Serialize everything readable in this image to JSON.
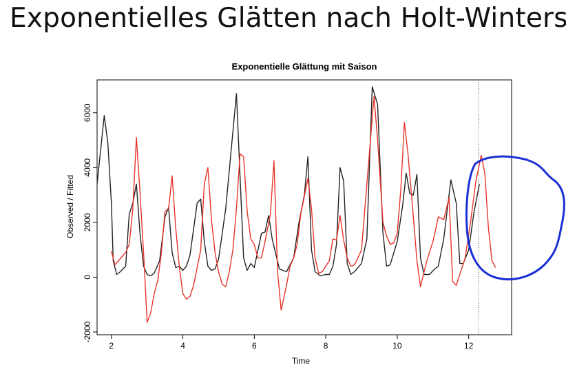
{
  "slide": {
    "title": "Exponentielles Glätten nach Holt-Winters"
  },
  "chart_data": {
    "type": "line",
    "title": "Exponentielle Glättung mit Saison",
    "xlabel": "Time",
    "ylabel": "Observed / Fitted",
    "xlim": [
      1.6,
      13.2
    ],
    "ylim": [
      -2100,
      7200
    ],
    "xticks": [
      2,
      4,
      6,
      8,
      10,
      12
    ],
    "yticks": [
      -2000,
      0,
      2000,
      4000,
      6000
    ],
    "vline_x": 12.28,
    "grid": false,
    "series": [
      {
        "color": "#222222",
        "points": [
          [
            1.6,
            3400
          ],
          [
            1.8,
            5900
          ],
          [
            1.9,
            4900
          ],
          [
            2.0,
            2700
          ],
          [
            2.05,
            600
          ],
          [
            2.15,
            100
          ],
          [
            2.25,
            200
          ],
          [
            2.4,
            400
          ],
          [
            2.5,
            2300
          ],
          [
            2.6,
            2700
          ],
          [
            2.7,
            3400
          ],
          [
            2.8,
            1600
          ],
          [
            2.9,
            400
          ],
          [
            3.0,
            100
          ],
          [
            3.1,
            50
          ],
          [
            3.2,
            150
          ],
          [
            3.35,
            600
          ],
          [
            3.5,
            2200
          ],
          [
            3.6,
            2550
          ],
          [
            3.7,
            900
          ],
          [
            3.8,
            350
          ],
          [
            3.9,
            400
          ],
          [
            4.0,
            250
          ],
          [
            4.1,
            400
          ],
          [
            4.2,
            800
          ],
          [
            4.4,
            2700
          ],
          [
            4.5,
            2850
          ],
          [
            4.6,
            1300
          ],
          [
            4.7,
            400
          ],
          [
            4.8,
            250
          ],
          [
            4.9,
            300
          ],
          [
            5.0,
            650
          ],
          [
            5.2,
            2500
          ],
          [
            5.5,
            6700
          ],
          [
            5.7,
            700
          ],
          [
            5.8,
            250
          ],
          [
            5.9,
            500
          ],
          [
            6.0,
            350
          ],
          [
            6.2,
            1600
          ],
          [
            6.3,
            1650
          ],
          [
            6.4,
            2250
          ],
          [
            6.5,
            1400
          ],
          [
            6.7,
            300
          ],
          [
            6.9,
            200
          ],
          [
            7.1,
            700
          ],
          [
            7.25,
            2000
          ],
          [
            7.4,
            3000
          ],
          [
            7.5,
            4400
          ],
          [
            7.6,
            1000
          ],
          [
            7.7,
            200
          ],
          [
            7.85,
            50
          ],
          [
            8.0,
            100
          ],
          [
            8.1,
            100
          ],
          [
            8.2,
            400
          ],
          [
            8.3,
            1200
          ],
          [
            8.4,
            4000
          ],
          [
            8.5,
            3500
          ],
          [
            8.6,
            500
          ],
          [
            8.7,
            100
          ],
          [
            8.8,
            200
          ],
          [
            9.0,
            500
          ],
          [
            9.15,
            1400
          ],
          [
            9.3,
            6950
          ],
          [
            9.45,
            6300
          ],
          [
            9.6,
            1600
          ],
          [
            9.7,
            400
          ],
          [
            9.8,
            450
          ],
          [
            10.0,
            1300
          ],
          [
            10.15,
            2600
          ],
          [
            10.25,
            3800
          ],
          [
            10.35,
            3050
          ],
          [
            10.45,
            3000
          ],
          [
            10.55,
            3750
          ],
          [
            10.65,
            700
          ],
          [
            10.75,
            100
          ],
          [
            10.9,
            100
          ],
          [
            11.05,
            300
          ],
          [
            11.15,
            400
          ],
          [
            11.3,
            1400
          ],
          [
            11.5,
            3550
          ],
          [
            11.65,
            2700
          ],
          [
            11.75,
            500
          ],
          [
            11.85,
            500
          ],
          [
            12.0,
            1000
          ],
          [
            12.15,
            2400
          ],
          [
            12.3,
            3400
          ]
        ]
      },
      {
        "color": "#e8332a",
        "points": [
          [
            2.0,
            950
          ],
          [
            2.1,
            450
          ],
          [
            2.2,
            600
          ],
          [
            2.4,
            900
          ],
          [
            2.5,
            1200
          ],
          [
            2.6,
            2500
          ],
          [
            2.7,
            5100
          ],
          [
            2.8,
            3100
          ],
          [
            2.9,
            900
          ],
          [
            3.0,
            -1650
          ],
          [
            3.1,
            -1300
          ],
          [
            3.2,
            -600
          ],
          [
            3.3,
            -100
          ],
          [
            3.4,
            900
          ],
          [
            3.5,
            2400
          ],
          [
            3.6,
            2500
          ],
          [
            3.7,
            3700
          ],
          [
            3.8,
            1800
          ],
          [
            3.9,
            400
          ],
          [
            4.0,
            -600
          ],
          [
            4.1,
            -800
          ],
          [
            4.2,
            -700
          ],
          [
            4.3,
            -300
          ],
          [
            4.5,
            1000
          ],
          [
            4.6,
            3400
          ],
          [
            4.7,
            4000
          ],
          [
            4.8,
            2100
          ],
          [
            4.9,
            900
          ],
          [
            5.0,
            200
          ],
          [
            5.1,
            -250
          ],
          [
            5.2,
            -350
          ],
          [
            5.3,
            200
          ],
          [
            5.4,
            1000
          ],
          [
            5.5,
            2500
          ],
          [
            5.6,
            4500
          ],
          [
            5.7,
            4400
          ],
          [
            5.8,
            2400
          ],
          [
            5.9,
            1400
          ],
          [
            6.0,
            1200
          ],
          [
            6.1,
            700
          ],
          [
            6.2,
            700
          ],
          [
            6.3,
            1300
          ],
          [
            6.45,
            2300
          ],
          [
            6.55,
            4250
          ],
          [
            6.65,
            200
          ],
          [
            6.75,
            -1200
          ],
          [
            6.9,
            -300
          ],
          [
            7.0,
            400
          ],
          [
            7.1,
            700
          ],
          [
            7.2,
            1200
          ],
          [
            7.3,
            2300
          ],
          [
            7.5,
            3600
          ],
          [
            7.6,
            2500
          ],
          [
            7.7,
            700
          ],
          [
            7.8,
            150
          ],
          [
            7.9,
            200
          ],
          [
            8.0,
            400
          ],
          [
            8.1,
            600
          ],
          [
            8.2,
            1400
          ],
          [
            8.3,
            1350
          ],
          [
            8.4,
            2250
          ],
          [
            8.5,
            1350
          ],
          [
            8.6,
            700
          ],
          [
            8.7,
            400
          ],
          [
            8.8,
            450
          ],
          [
            8.9,
            700
          ],
          [
            9.0,
            1000
          ],
          [
            9.2,
            4200
          ],
          [
            9.35,
            6600
          ],
          [
            9.45,
            5000
          ],
          [
            9.6,
            2000
          ],
          [
            9.7,
            1500
          ],
          [
            9.8,
            1200
          ],
          [
            9.9,
            1250
          ],
          [
            10.0,
            1600
          ],
          [
            10.1,
            3200
          ],
          [
            10.2,
            5650
          ],
          [
            10.3,
            4500
          ],
          [
            10.4,
            3000
          ],
          [
            10.55,
            600
          ],
          [
            10.65,
            -350
          ],
          [
            10.75,
            200
          ],
          [
            10.85,
            700
          ],
          [
            11.0,
            1300
          ],
          [
            11.15,
            2200
          ],
          [
            11.3,
            2100
          ],
          [
            11.45,
            2900
          ],
          [
            11.55,
            -150
          ],
          [
            11.65,
            -300
          ],
          [
            11.8,
            300
          ],
          [
            11.9,
            700
          ],
          [
            12.05,
            2000
          ],
          [
            12.2,
            3500
          ],
          [
            12.35,
            4450
          ],
          [
            12.45,
            3800
          ],
          [
            12.55,
            1800
          ],
          [
            12.65,
            600
          ],
          [
            12.75,
            350
          ]
        ]
      }
    ]
  }
}
